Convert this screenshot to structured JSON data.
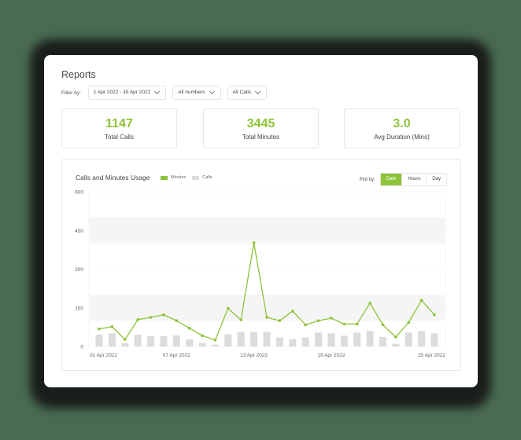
{
  "page": {
    "title": "Reports"
  },
  "filters": {
    "label": "Filter by:",
    "date_range": "1 Apr 2022 - 30 Apr 2022",
    "numbers": "All numbers",
    "calls": "All Calls"
  },
  "stats": [
    {
      "value": "1147",
      "label": "Total Calls"
    },
    {
      "value": "3445",
      "label": "Total Minutes"
    },
    {
      "value": "3.0",
      "label": "Avg Duration (Mins)"
    }
  ],
  "chart": {
    "title": "Calls and Minutes Usage",
    "legend": {
      "minutes": "Minutes",
      "calls": "Calls"
    },
    "plot_by": {
      "label": "Plot by:",
      "options": [
        "Date",
        "Hours",
        "Day"
      ],
      "selected": "Date"
    }
  },
  "colors": {
    "accent": "#8dc33a",
    "bar": "#dcdcdc",
    "band": "#f5f5f5",
    "background": "#4a6b52"
  },
  "chart_data": {
    "type": "bar",
    "title": "Calls and Minutes Usage",
    "xlabel": "",
    "ylabel": "",
    "ylim": [
      0,
      600
    ],
    "yticks": [
      0,
      150,
      300,
      450,
      600
    ],
    "xtick_labels": [
      "01 Apr 2022",
      "07 Apr 2022",
      "13 Apr 2022",
      "19 Apr 2022",
      "25 Apr 2022"
    ],
    "legend_position": "top",
    "categories": [
      "01 Apr",
      "02 Apr",
      "03 Apr",
      "04 Apr",
      "05 Apr",
      "06 Apr",
      "07 Apr",
      "08 Apr",
      "09 Apr",
      "10 Apr",
      "11 Apr",
      "12 Apr",
      "13 Apr",
      "14 Apr",
      "15 Apr",
      "16 Apr",
      "17 Apr",
      "18 Apr",
      "19 Apr",
      "20 Apr",
      "21 Apr",
      "22 Apr",
      "23 Apr",
      "24 Apr",
      "25 Apr",
      "26 Apr",
      "27 Apr"
    ],
    "series": [
      {
        "name": "Minutes",
        "type": "line",
        "values": [
          68,
          77,
          27,
          104,
          113,
          123,
          100,
          71,
          42,
          25,
          148,
          103,
          402,
          113,
          100,
          137,
          84,
          100,
          110,
          87,
          87,
          168,
          84,
          37,
          93,
          179,
          123
        ]
      },
      {
        "name": "Calls",
        "type": "bar",
        "values": [
          46,
          51,
          13,
          46,
          40,
          40,
          43,
          27,
          13,
          7,
          48,
          57,
          57,
          57,
          35,
          29,
          35,
          54,
          51,
          42,
          54,
          60,
          37,
          10,
          54,
          60,
          51
        ]
      }
    ]
  }
}
